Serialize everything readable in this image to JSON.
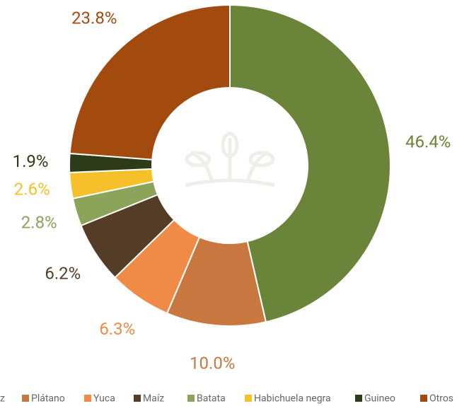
{
  "chart_data": {
    "type": "donut",
    "categories": [
      "z",
      "Plátano",
      "Yuca",
      "Maíz",
      "Batata",
      "Habichuela negra",
      "Guineo",
      "Otros"
    ],
    "values": [
      46.4,
      10.0,
      6.3,
      6.2,
      2.8,
      2.6,
      1.9,
      23.8
    ],
    "value_labels": [
      "46.4%",
      "10.0%",
      "6.3%",
      "6.2%",
      "2.8%",
      "2.6%",
      "1.9%",
      "23.8%"
    ],
    "colors": [
      "#6a8439",
      "#c8783f",
      "#ef8a47",
      "#553c27",
      "#8ba45a",
      "#f5c02a",
      "#2e3b18",
      "#a34a0f"
    ],
    "legend": "bottom"
  }
}
